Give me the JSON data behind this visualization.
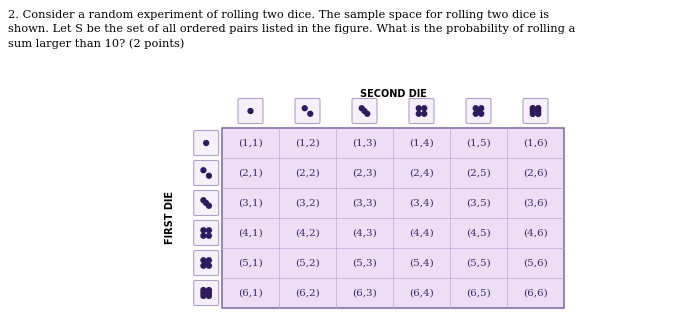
{
  "title_text": "2. Consider a random experiment of rolling two dice. The sample space for rolling two dice is\nshown. Let S be the set of all ordered pairs listed in the figure. What is the probability of rolling a\nsum larger than 10? (2 points)",
  "second_die_label": "SECOND DIE",
  "first_die_label": "FIRST DIE",
  "grid_bg_color": "#ecdff5",
  "die_bg_color": "#f5f0fa",
  "die_border_color": "#b0a0c8",
  "dot_color": "#2d1b5e",
  "text_color": "#3d2b6e",
  "title_color": "#000000",
  "pairs": [
    [
      "(1,1)",
      "(1,2)",
      "(1,3)",
      "(1,4)",
      "(1,5)",
      "(1,6)"
    ],
    [
      "(2,1)",
      "(2,2)",
      "(2,3)",
      "(2,4)",
      "(2,5)",
      "(2,6)"
    ],
    [
      "(3,1)",
      "(3,2)",
      "(3,3)",
      "(3,4)",
      "(3,5)",
      "(3,6)"
    ],
    [
      "(4,1)",
      "(4,2)",
      "(4,3)",
      "(4,4)",
      "(4,5)",
      "(4,6)"
    ],
    [
      "(5,1)",
      "(5,2)",
      "(5,3)",
      "(5,4)",
      "(5,5)",
      "(5,6)"
    ],
    [
      "(6,1)",
      "(6,2)",
      "(6,3)",
      "(6,4)",
      "(6,5)",
      "(6,6)"
    ]
  ],
  "figsize": [
    6.84,
    3.23
  ],
  "dpi": 100
}
